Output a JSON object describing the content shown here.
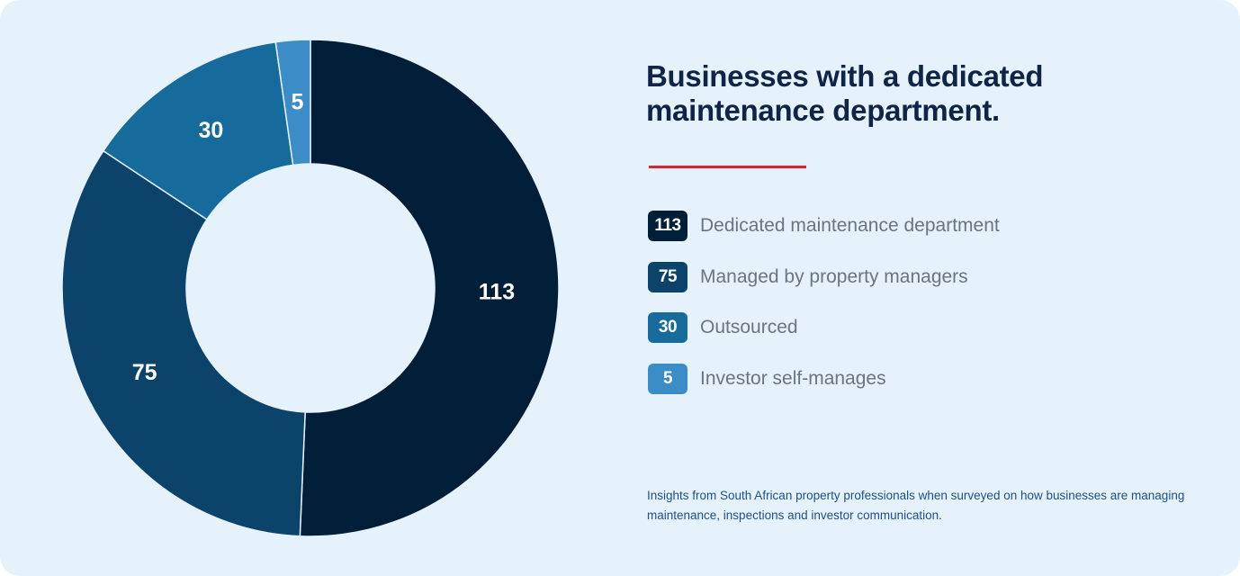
{
  "title": "Businesses with a dedicated maintenance department.",
  "footnote": "Insights from South African property professionals when surveyed on how businesses are managing maintenance, inspections and investor communication.",
  "colors": {
    "background": "#e6f2fb",
    "accent_rule": "#d7232f",
    "title": "#0f2447"
  },
  "chart_data": {
    "type": "pie",
    "variant": "donut",
    "title": "Businesses with a dedicated maintenance department.",
    "legend_placement": "right",
    "slices": [
      {
        "label": "Dedicated maintenance department",
        "value": 113,
        "color": "#001e38"
      },
      {
        "label": "Managed by property managers",
        "value": 75,
        "color": "#0b436b"
      },
      {
        "label": "Outsourced",
        "value": 30,
        "color": "#176a9c"
      },
      {
        "label": "Investor self-manages",
        "value": 5,
        "color": "#3b8cc7"
      }
    ]
  }
}
